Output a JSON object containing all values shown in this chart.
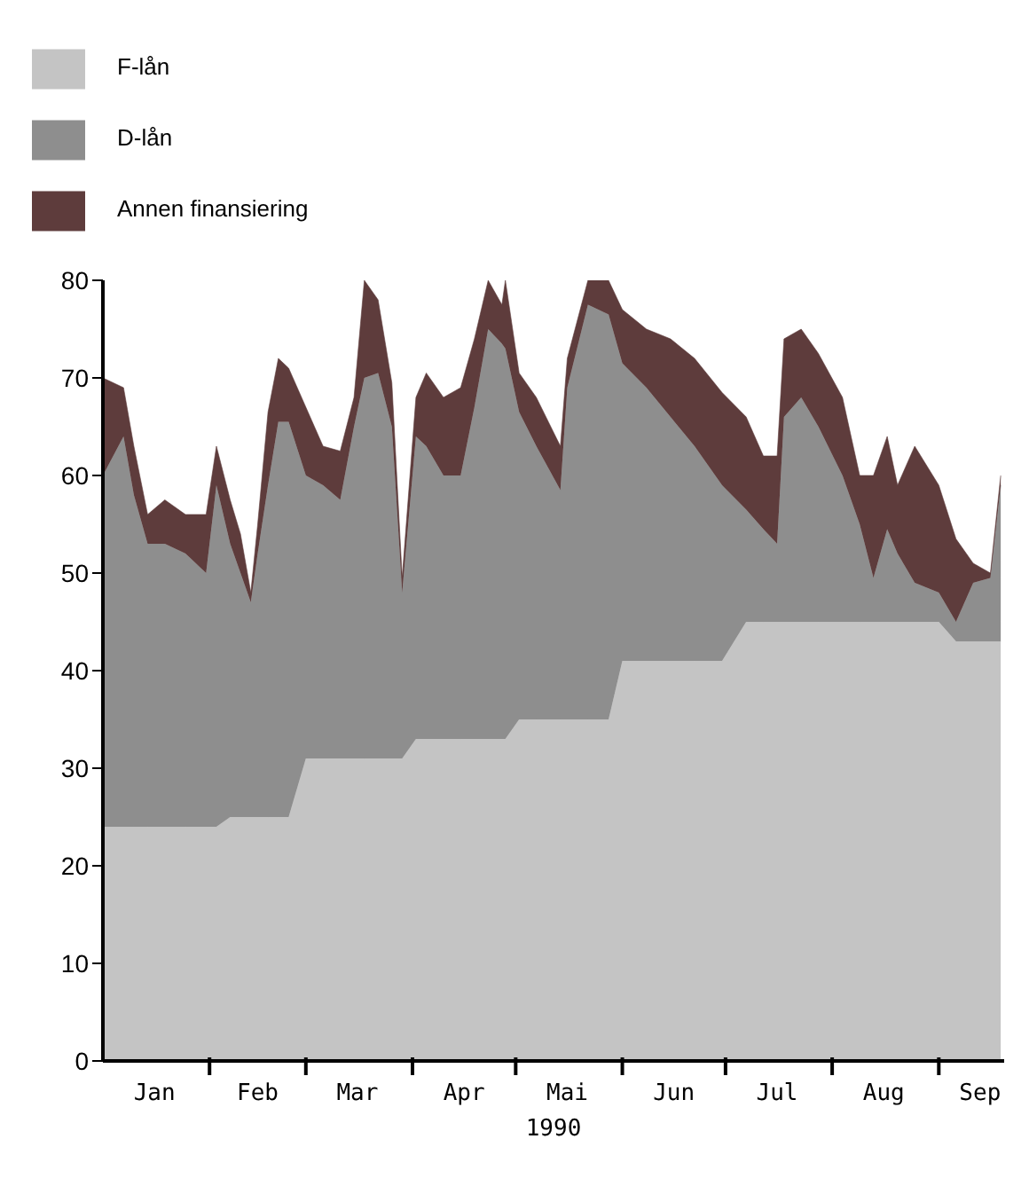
{
  "chart_data": {
    "type": "area",
    "stacked": true,
    "xlabel": "1990",
    "legend": "top left",
    "grid": false,
    "x": [
      "1990-01-01",
      "1990-01-07",
      "1990-01-10",
      "1990-01-14",
      "1990-01-19",
      "1990-01-25",
      "1990-01-31",
      "1990-02-03",
      "1990-02-07",
      "1990-02-10",
      "1990-02-13",
      "1990-02-15",
      "1990-02-18",
      "1990-02-21",
      "1990-02-24",
      "1990-03-01",
      "1990-03-06",
      "1990-03-11",
      "1990-03-15",
      "1990-03-18",
      "1990-03-22",
      "1990-03-26",
      "1990-03-29",
      "1990-04-02",
      "1990-04-05",
      "1990-04-10",
      "1990-04-15",
      "1990-04-19",
      "1990-04-23",
      "1990-04-27",
      "1990-04-28",
      "1990-05-02",
      "1990-05-07",
      "1990-05-14",
      "1990-05-16",
      "1990-05-22",
      "1990-05-28",
      "1990-06-01",
      "1990-06-08",
      "1990-06-15",
      "1990-06-22",
      "1990-06-30",
      "1990-07-07",
      "1990-07-12",
      "1990-07-16",
      "1990-07-18",
      "1990-07-23",
      "1990-07-28",
      "1990-08-04",
      "1990-08-09",
      "1990-08-13",
      "1990-08-17",
      "1990-08-20",
      "1990-08-25",
      "1990-09-01",
      "1990-09-06",
      "1990-09-11",
      "1990-09-16",
      "1990-09-19"
    ],
    "series": [
      {
        "name": "F-lån",
        "color": "#c4c4c4",
        "values": [
          24,
          24,
          24,
          24,
          24,
          24,
          24,
          24,
          25,
          25,
          25,
          25,
          25,
          25,
          25,
          31,
          31,
          31,
          31,
          31,
          31,
          31,
          31,
          33,
          33,
          33,
          33,
          33,
          33,
          33,
          33,
          35,
          35,
          35,
          35,
          35,
          35,
          41,
          41,
          41,
          41,
          41,
          45,
          45,
          45,
          45,
          45,
          45,
          45,
          45,
          45,
          45,
          45,
          45,
          45,
          43,
          43,
          43,
          43
        ]
      },
      {
        "name": "D-lån",
        "color": "#8e8e8e",
        "values": [
          36,
          40,
          34,
          29,
          29,
          28,
          26,
          35,
          28,
          25,
          22,
          27,
          34,
          40.5,
          40.5,
          29,
          28,
          26.5,
          34,
          39,
          39.5,
          34,
          17,
          31,
          30,
          27,
          27,
          34,
          42,
          40.5,
          40,
          31.5,
          28,
          23.5,
          34,
          42.5,
          41.5,
          30.5,
          28,
          25,
          22,
          18,
          11.5,
          9.5,
          8,
          21,
          23,
          20,
          15,
          10,
          4.5,
          9.5,
          7,
          4,
          3,
          2,
          6,
          6.5,
          16
        ]
      },
      {
        "name": "Annen finansiering",
        "color": "#5e3c3c",
        "values": [
          10,
          5,
          5,
          3,
          4.5,
          4,
          6,
          4,
          4.5,
          4,
          1,
          3,
          7.5,
          6.5,
          5.5,
          7,
          4,
          5,
          3,
          10,
          7.5,
          4.5,
          1.5,
          4,
          7.5,
          8,
          9,
          7,
          5,
          4,
          7,
          4,
          5,
          4.5,
          3,
          2.5,
          3.5,
          5.5,
          6,
          8,
          9,
          9.5,
          9.5,
          7.5,
          9,
          8,
          7,
          7.5,
          8,
          5,
          10.5,
          9.5,
          7,
          14,
          11,
          8.5,
          2,
          0.5,
          1
        ]
      }
    ],
    "xlim": [
      "1990-01-01",
      "1990-09-20"
    ],
    "xticks": [
      {
        "value": "1990-01-16",
        "label": "Jan"
      },
      {
        "value": "1990-02-01",
        "label": null
      },
      {
        "value": "1990-02-15",
        "label": "Feb"
      },
      {
        "value": "1990-03-01",
        "label": null
      },
      {
        "value": "1990-03-16",
        "label": "Mar"
      },
      {
        "value": "1990-04-01",
        "label": null
      },
      {
        "value": "1990-04-16",
        "label": "Apr"
      },
      {
        "value": "1990-05-01",
        "label": null
      },
      {
        "value": "1990-05-16",
        "label": "Mai"
      },
      {
        "value": "1990-06-01",
        "label": null
      },
      {
        "value": "1990-06-16",
        "label": "Jun"
      },
      {
        "value": "1990-07-01",
        "label": null
      },
      {
        "value": "1990-07-16",
        "label": "Jul"
      },
      {
        "value": "1990-08-01",
        "label": null
      },
      {
        "value": "1990-08-16",
        "label": "Aug"
      },
      {
        "value": "1990-09-01",
        "label": null
      },
      {
        "value": "1990-09-13",
        "label": "Sep"
      }
    ],
    "ylim": [
      0,
      80
    ],
    "yticks": [
      0,
      10,
      20,
      30,
      40,
      50,
      60,
      70,
      80
    ]
  }
}
